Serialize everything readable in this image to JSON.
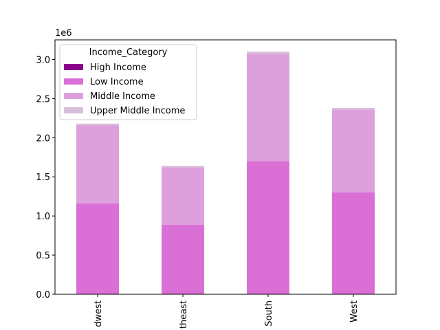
{
  "chart_data": {
    "type": "bar",
    "stacked": true,
    "categories": [
      "Midwest",
      "Northeast",
      "South",
      "West"
    ],
    "category_labels_visible": [
      "dwest",
      "theast",
      "South",
      "West"
    ],
    "series": [
      {
        "name": "High Income",
        "color": "#8b008b",
        "values": [
          0,
          0,
          0,
          0
        ]
      },
      {
        "name": "Low Income",
        "color": "#da70d6",
        "values": [
          1160000,
          890000,
          1700000,
          1300000
        ]
      },
      {
        "name": "Middle Income",
        "color": "#dda0dd",
        "values": [
          1000000,
          730000,
          1370000,
          1060000
        ]
      },
      {
        "name": "Upper Middle Income",
        "color": "#d8bfd8",
        "values": [
          20000,
          20000,
          30000,
          20000
        ]
      }
    ],
    "ylim": [
      0,
      3250000
    ],
    "yticks": [
      0,
      500000,
      1000000,
      1500000,
      2000000,
      2500000,
      3000000
    ],
    "ytick_labels": [
      "0.0",
      "0.5",
      "1.0",
      "1.5",
      "2.0",
      "2.5",
      "3.0"
    ],
    "offset_label": "1e6",
    "legend_title": "Income_Category",
    "legend_position": "upper-left",
    "grid": false
  }
}
